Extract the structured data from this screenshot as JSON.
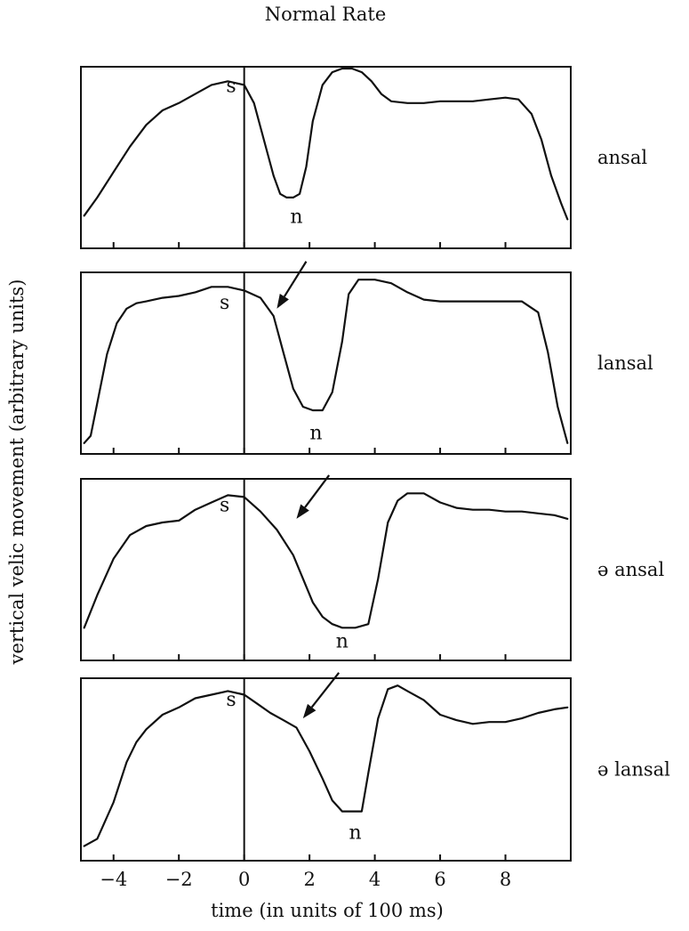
{
  "chart_data": {
    "type": "line",
    "title": "Normal Rate",
    "xlabel": "time (in units of 100 ms)",
    "ylabel": "vertical velic movement (arbitrary units)",
    "xlim": [
      -5,
      10
    ],
    "x_ticks": [
      -4,
      -2,
      0,
      2,
      4,
      6,
      8
    ],
    "x_tick_labels": [
      "−4",
      "−2",
      "0",
      "2",
      "4",
      "6",
      "8"
    ],
    "ylim": [
      0,
      1
    ],
    "grid": false,
    "legend": "none",
    "panels": [
      {
        "label": "ansal",
        "series": [
          {
            "x": [
              -4.9,
              -4.5,
              -4.0,
              -3.5,
              -3.0,
              -2.5,
              -2.0,
              -1.5,
              -1.0,
              -0.5,
              0.0,
              0.3,
              0.6,
              0.9,
              1.1,
              1.3,
              1.5,
              1.7,
              1.9,
              2.1,
              2.4,
              2.7,
              3.0,
              3.3,
              3.6,
              3.9,
              4.2,
              4.5,
              5.0,
              5.5,
              6.0,
              6.5,
              7.0,
              7.5,
              8.0,
              8.4,
              8.8,
              9.1,
              9.4,
              9.7,
              9.9
            ],
            "y": [
              0.18,
              0.28,
              0.42,
              0.56,
              0.68,
              0.76,
              0.8,
              0.85,
              0.9,
              0.92,
              0.9,
              0.8,
              0.6,
              0.4,
              0.3,
              0.28,
              0.28,
              0.3,
              0.45,
              0.7,
              0.9,
              0.97,
              0.99,
              0.99,
              0.97,
              0.92,
              0.85,
              0.81,
              0.8,
              0.8,
              0.81,
              0.81,
              0.81,
              0.82,
              0.83,
              0.82,
              0.74,
              0.6,
              0.4,
              0.25,
              0.16
            ]
          }
        ],
        "labels": [
          {
            "text": "s",
            "x": -0.4,
            "y": 0.86
          },
          {
            "text": "n",
            "x": 1.6,
            "y": 0.14
          }
        ]
      },
      {
        "label": "lansal",
        "series": [
          {
            "x": [
              -4.9,
              -4.7,
              -4.5,
              -4.2,
              -3.9,
              -3.6,
              -3.3,
              -3.0,
              -2.5,
              -2.0,
              -1.5,
              -1.0,
              -0.5,
              0.0,
              0.5,
              0.9,
              1.2,
              1.5,
              1.8,
              2.1,
              2.4,
              2.7,
              3.0,
              3.2,
              3.5,
              4.0,
              4.5,
              5.0,
              5.5,
              6.0,
              6.5,
              7.0,
              7.5,
              8.0,
              8.5,
              9.0,
              9.3,
              9.6,
              9.9
            ],
            "y": [
              0.06,
              0.1,
              0.28,
              0.55,
              0.72,
              0.8,
              0.83,
              0.84,
              0.86,
              0.87,
              0.89,
              0.92,
              0.92,
              0.9,
              0.86,
              0.76,
              0.56,
              0.36,
              0.26,
              0.24,
              0.24,
              0.34,
              0.62,
              0.88,
              0.96,
              0.96,
              0.94,
              0.89,
              0.85,
              0.84,
              0.84,
              0.84,
              0.84,
              0.84,
              0.84,
              0.78,
              0.56,
              0.26,
              0.06
            ]
          }
        ],
        "labels": [
          {
            "text": "s",
            "x": -0.6,
            "y": 0.8
          },
          {
            "text": "n",
            "x": 2.2,
            "y": 0.08
          }
        ],
        "arrows": [
          {
            "from": [
              1.9,
              1.06
            ],
            "to": [
              1.0,
              0.8
            ]
          }
        ]
      },
      {
        "label": "ə ansal",
        "series": [
          {
            "x": [
              -4.9,
              -4.5,
              -4.0,
              -3.5,
              -3.0,
              -2.5,
              -2.0,
              -1.5,
              -1.0,
              -0.5,
              0.0,
              0.5,
              1.0,
              1.5,
              1.8,
              2.1,
              2.4,
              2.7,
              3.0,
              3.4,
              3.8,
              4.1,
              4.4,
              4.7,
              5.0,
              5.5,
              6.0,
              6.5,
              7.0,
              7.5,
              8.0,
              8.5,
              9.0,
              9.5,
              9.9
            ],
            "y": [
              0.18,
              0.36,
              0.56,
              0.69,
              0.74,
              0.76,
              0.77,
              0.83,
              0.87,
              0.91,
              0.9,
              0.82,
              0.72,
              0.58,
              0.45,
              0.32,
              0.24,
              0.2,
              0.18,
              0.18,
              0.2,
              0.45,
              0.76,
              0.88,
              0.92,
              0.92,
              0.87,
              0.84,
              0.83,
              0.83,
              0.82,
              0.82,
              0.81,
              0.8,
              0.78
            ]
          }
        ],
        "labels": [
          {
            "text": "s",
            "x": -0.6,
            "y": 0.82
          },
          {
            "text": "n",
            "x": 3.0,
            "y": 0.07
          }
        ],
        "arrows": [
          {
            "from": [
              2.6,
              1.02
            ],
            "to": [
              1.6,
              0.78
            ]
          }
        ]
      },
      {
        "label": "ə lansal",
        "series": [
          {
            "x": [
              -4.9,
              -4.5,
              -4.0,
              -3.6,
              -3.3,
              -3.0,
              -2.5,
              -2.0,
              -1.5,
              -1.0,
              -0.5,
              0.0,
              0.4,
              0.8,
              1.2,
              1.6,
              2.0,
              2.4,
              2.7,
              3.0,
              3.3,
              3.6,
              3.8,
              4.1,
              4.4,
              4.7,
              5.0,
              5.5,
              6.0,
              6.5,
              7.0,
              7.5,
              8.0,
              8.5,
              9.0,
              9.5,
              9.9
            ],
            "y": [
              0.08,
              0.12,
              0.32,
              0.54,
              0.65,
              0.72,
              0.8,
              0.84,
              0.89,
              0.91,
              0.93,
              0.91,
              0.86,
              0.81,
              0.77,
              0.73,
              0.6,
              0.45,
              0.33,
              0.27,
              0.27,
              0.27,
              0.48,
              0.78,
              0.94,
              0.96,
              0.93,
              0.88,
              0.8,
              0.77,
              0.75,
              0.76,
              0.76,
              0.78,
              0.81,
              0.83,
              0.84
            ]
          }
        ],
        "labels": [
          {
            "text": "s",
            "x": -0.4,
            "y": 0.85
          },
          {
            "text": "n",
            "x": 3.4,
            "y": 0.12
          }
        ],
        "arrows": [
          {
            "from": [
              2.9,
              1.03
            ],
            "to": [
              1.8,
              0.78
            ]
          }
        ]
      }
    ]
  }
}
